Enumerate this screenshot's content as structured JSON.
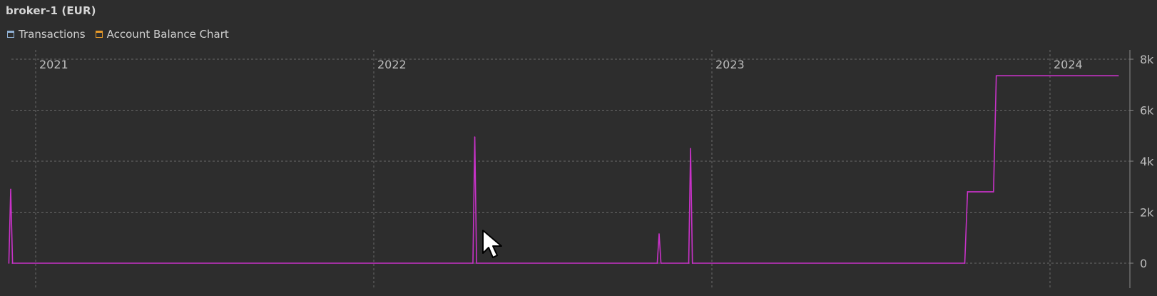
{
  "window": {
    "title": "broker-1 (EUR)"
  },
  "tabs": [
    {
      "label": "Transactions",
      "icon": "window-icon",
      "color": "#8fb0d3"
    },
    {
      "label": "Account Balance Chart",
      "icon": "window-icon",
      "color": "#e79a2a"
    }
  ],
  "chart_data": {
    "type": "line",
    "title": "",
    "xlabel": "",
    "ylabel": "",
    "x_tick_labels": [
      "2021",
      "2022",
      "2023",
      "2024"
    ],
    "y_tick_labels": [
      "0",
      "2k",
      "4k",
      "6k",
      "8k"
    ],
    "ylim": [
      0,
      8000
    ],
    "grid": true,
    "line_color": "#c832c8",
    "series": [
      {
        "values_x": [
          "2020-12-03",
          "2020-12-05",
          "2020-12-07",
          "2022-04-18",
          "2022-04-20",
          "2022-04-22",
          "2022-11-03",
          "2022-11-05",
          "2022-11-07",
          "2022-12-07",
          "2022-12-09",
          "2022-12-11",
          "2023-10-01",
          "2023-10-04",
          "2023-11-01",
          "2023-11-04",
          "2024-03-15"
        ],
        "values_y": [
          0,
          2900,
          0,
          0,
          4950,
          0,
          0,
          1150,
          0,
          0,
          4500,
          0,
          0,
          2800,
          2800,
          7350,
          7350
        ]
      }
    ]
  }
}
